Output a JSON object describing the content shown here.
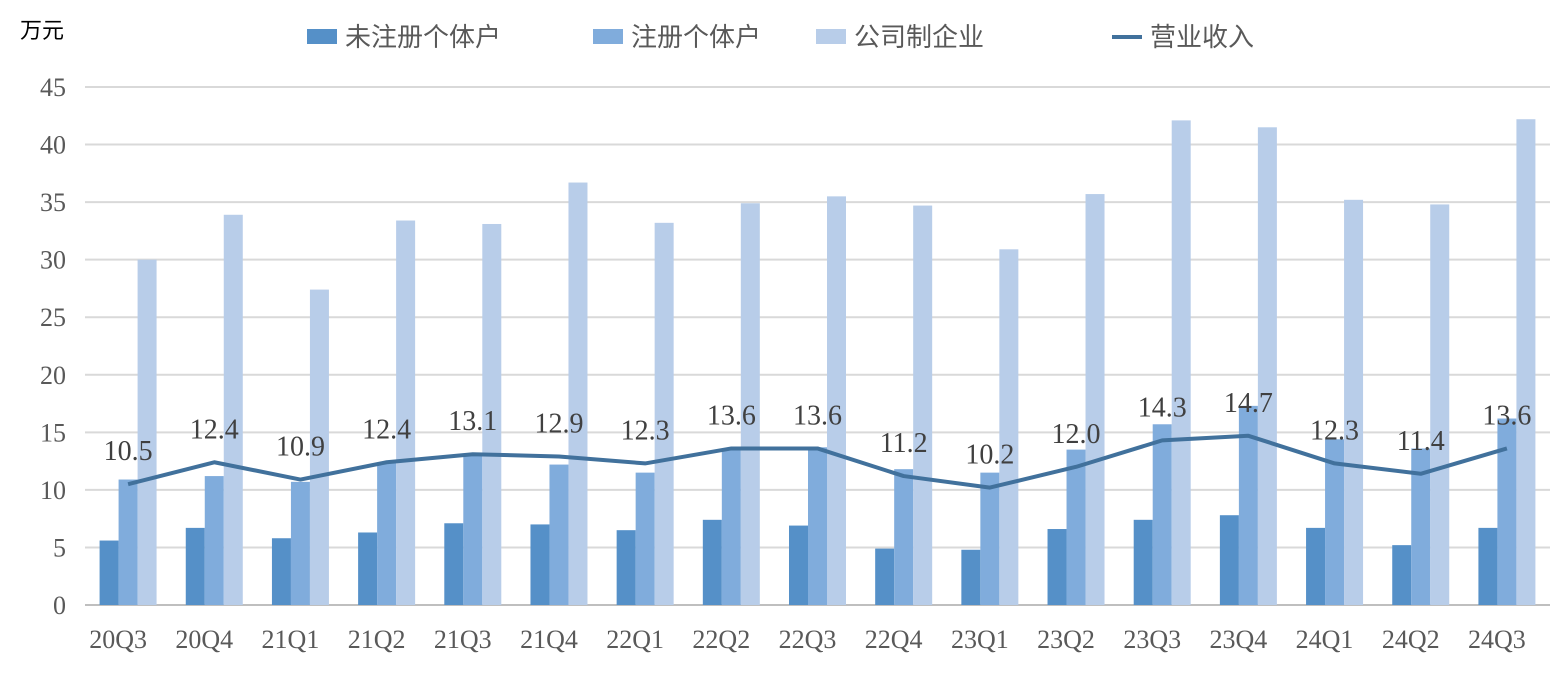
{
  "chart_data": {
    "type": "bar+line",
    "ylabel": "万元",
    "ylim": [
      0,
      45
    ],
    "yticks": [
      0,
      5,
      10,
      15,
      20,
      25,
      30,
      35,
      40,
      45
    ],
    "grid": true,
    "legend_position": "top",
    "categories": [
      "20Q3",
      "20Q4",
      "21Q1",
      "21Q2",
      "21Q3",
      "21Q4",
      "22Q1",
      "22Q2",
      "22Q3",
      "22Q4",
      "23Q1",
      "23Q2",
      "23Q3",
      "23Q4",
      "24Q1",
      "24Q2",
      "24Q3"
    ],
    "series": [
      {
        "name": "未注册个体户",
        "type": "bar",
        "color": "#5590c8",
        "values": [
          5.6,
          6.7,
          5.8,
          6.3,
          7.1,
          7.0,
          6.5,
          7.4,
          6.9,
          4.9,
          4.8,
          6.6,
          7.4,
          7.8,
          6.7,
          5.2,
          6.7
        ]
      },
      {
        "name": "注册个体户",
        "type": "bar",
        "color": "#80acdc",
        "values": [
          10.9,
          11.2,
          10.7,
          12.4,
          13.0,
          12.2,
          11.5,
          13.5,
          13.7,
          11.8,
          11.5,
          13.5,
          15.7,
          17.3,
          14.4,
          13.6,
          16.2
        ]
      },
      {
        "name": "公司制企业",
        "type": "bar",
        "color": "#b8cde9",
        "values": [
          30.0,
          33.9,
          27.4,
          33.4,
          33.1,
          36.7,
          33.2,
          34.9,
          35.5,
          34.7,
          30.9,
          35.7,
          42.1,
          41.5,
          35.2,
          34.8,
          42.2
        ]
      },
      {
        "name": "营业收入",
        "type": "line",
        "color": "#41719c",
        "values": [
          10.5,
          12.4,
          10.9,
          12.4,
          13.1,
          12.9,
          12.3,
          13.6,
          13.6,
          11.2,
          10.2,
          12.0,
          14.3,
          14.7,
          12.3,
          11.4,
          13.6
        ],
        "labels": [
          "10.5",
          "12.4",
          "10.9",
          "12.4",
          "13.1",
          "12.9",
          "12.3",
          "13.6",
          "13.6",
          "11.2",
          "10.2",
          "12.0",
          "14.3",
          "14.7",
          "12.3",
          "11.4",
          "13.6"
        ]
      }
    ]
  }
}
